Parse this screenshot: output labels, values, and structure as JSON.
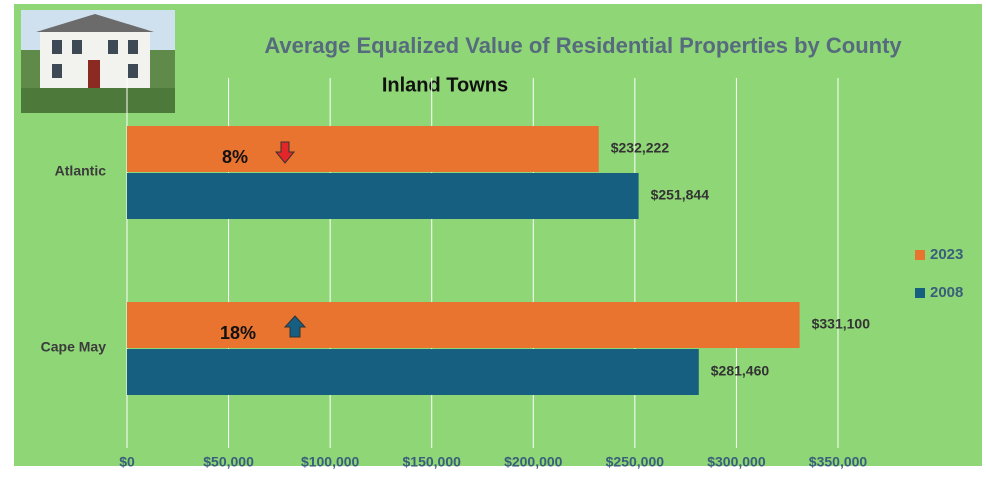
{
  "chart_data": {
    "type": "hbar",
    "title": "Average Equalized Value of Residential Properties by County",
    "subtitle": "Inland Towns",
    "categories": [
      "Atlantic",
      "Cape May"
    ],
    "series": [
      {
        "name": "2023",
        "color": "#e8742f",
        "values": [
          232222,
          331100
        ],
        "value_labels": [
          "$232,222",
          "$331,100"
        ]
      },
      {
        "name": "2008",
        "color": "#175f80",
        "values": [
          251844,
          281460
        ],
        "value_labels": [
          "$251,844",
          "$281,460"
        ]
      }
    ],
    "xlim": [
      0,
      350000
    ],
    "xticks": [
      {
        "value": 0,
        "label": "$0"
      },
      {
        "value": 50000,
        "label": "$50,000"
      },
      {
        "value": 100000,
        "label": "$100,000"
      },
      {
        "value": 150000,
        "label": "$150,000"
      },
      {
        "value": 200000,
        "label": "$200,000"
      },
      {
        "value": 250000,
        "label": "$250,000"
      },
      {
        "value": 300000,
        "label": "$300,000"
      },
      {
        "value": 350000,
        "label": "$350,000"
      }
    ],
    "grid": true,
    "legend": "right",
    "annotations": [
      {
        "text": "8%"
      },
      {
        "text": "18%"
      }
    ]
  }
}
